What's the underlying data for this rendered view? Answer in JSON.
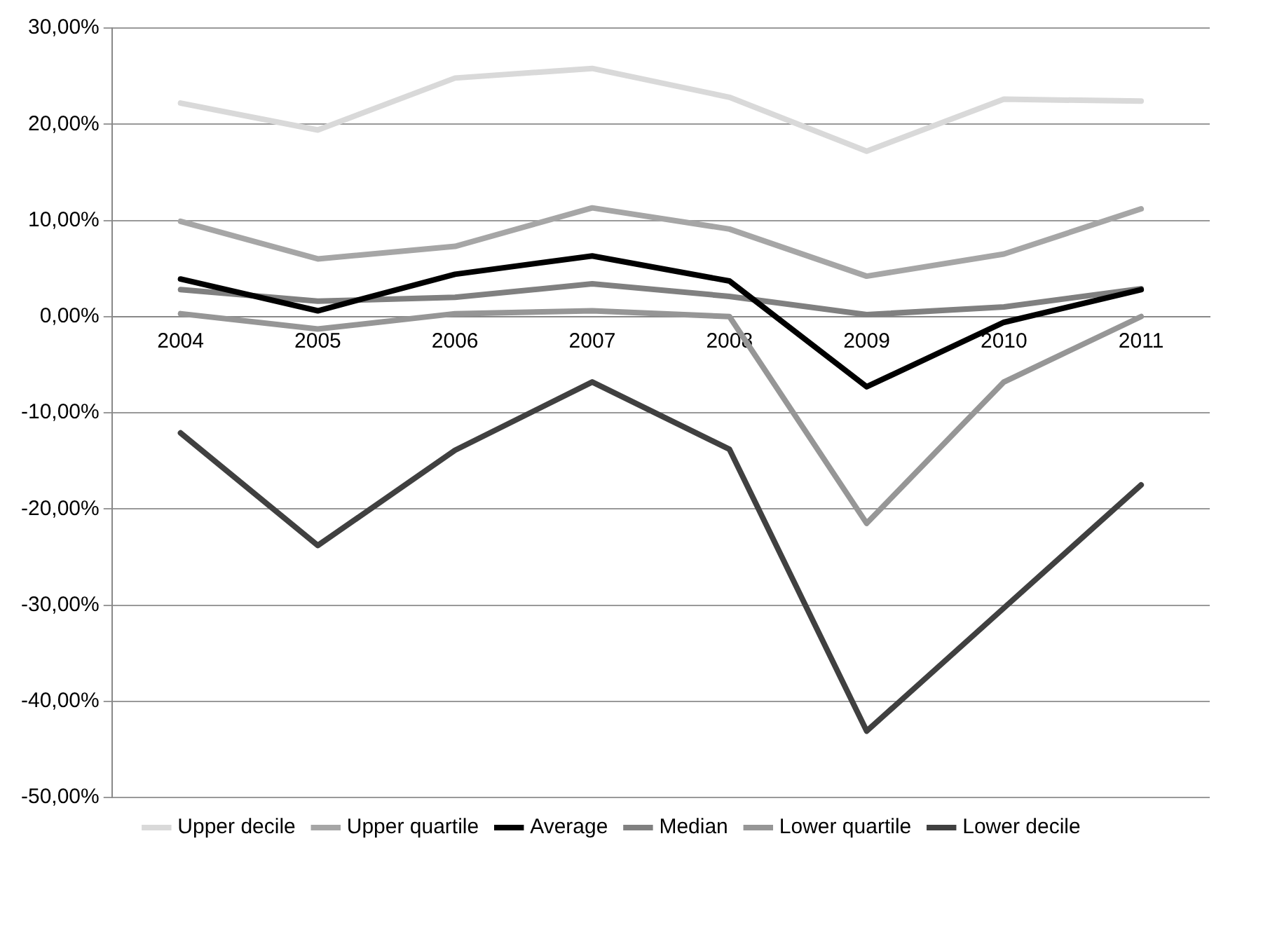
{
  "chart_data": {
    "type": "line",
    "categories": [
      "2004",
      "2005",
      "2006",
      "2007",
      "2008",
      "2009",
      "2010",
      "2011"
    ],
    "series": [
      {
        "name": "Upper decile",
        "color": "#d9d9d9",
        "values": [
          22.2,
          19.4,
          24.8,
          25.8,
          22.8,
          17.2,
          22.6,
          22.4
        ]
      },
      {
        "name": "Upper quartile",
        "color": "#a6a6a6",
        "values": [
          9.9,
          6.0,
          7.3,
          11.3,
          9.1,
          4.2,
          6.5,
          11.2
        ]
      },
      {
        "name": "Average",
        "color": "#000000",
        "values": [
          3.9,
          0.6,
          4.4,
          6.3,
          3.7,
          -7.3,
          -0.6,
          2.8
        ]
      },
      {
        "name": "Median",
        "color": "#808080",
        "values": [
          2.8,
          1.6,
          2.0,
          3.4,
          2.1,
          0.2,
          1.0,
          2.9
        ]
      },
      {
        "name": "Lower quartile",
        "color": "#969696",
        "values": [
          0.3,
          -1.3,
          0.3,
          0.6,
          0.0,
          -21.5,
          -6.8,
          0.0
        ]
      },
      {
        "name": "Lower decile",
        "color": "#404040",
        "values": [
          -12.1,
          -23.8,
          -13.9,
          -6.8,
          -13.8,
          -43.1,
          -30.3,
          -17.5
        ]
      }
    ],
    "ylim": [
      -50,
      30
    ],
    "yticks": [
      {
        "value": -50,
        "label": "-50,00%"
      },
      {
        "value": -40,
        "label": "-40,00%"
      },
      {
        "value": -30,
        "label": "-30,00%"
      },
      {
        "value": -20,
        "label": "-20,00%"
      },
      {
        "value": -10,
        "label": "-10,00%"
      },
      {
        "value": 0,
        "label": "0,00%"
      },
      {
        "value": 10,
        "label": "10,00%"
      },
      {
        "value": 20,
        "label": "20,00%"
      },
      {
        "value": 30,
        "label": "30,00%"
      }
    ],
    "grid": "y",
    "legend": "bottom",
    "marker": "none",
    "line_style": "solid"
  }
}
